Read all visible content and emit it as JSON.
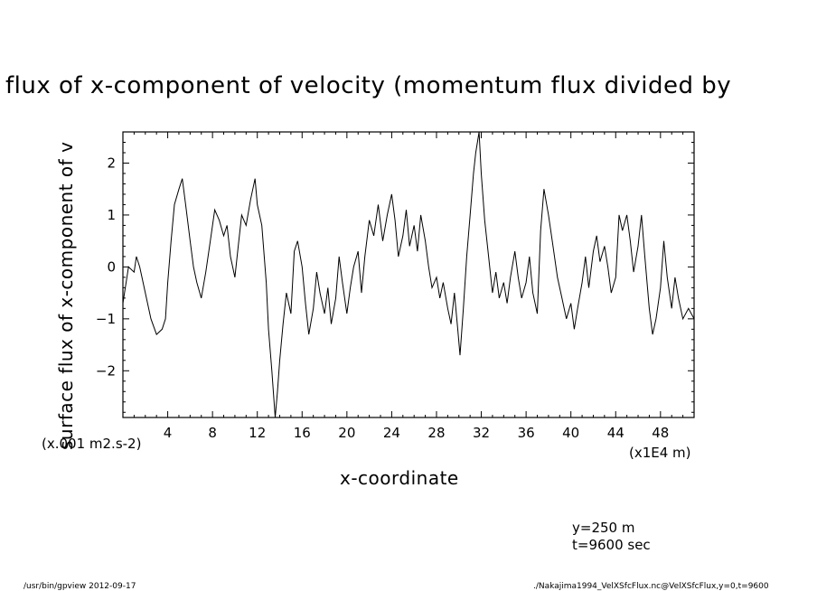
{
  "chart_data": {
    "type": "line",
    "title": "flux of x-component of velocity (momentum flux divided by",
    "xlabel": "x-coordinate",
    "ylabel": "surface flux of x-component of v",
    "x_unit_label": "(x1E4 m)",
    "y_unit_label": "(x.001 m2.s-2)",
    "xlim": [
      0,
      51
    ],
    "ylim": [
      -2.9,
      2.6
    ],
    "x_ticks": [
      4,
      8,
      12,
      16,
      20,
      24,
      28,
      32,
      36,
      40,
      44,
      48
    ],
    "x_tick_labels": [
      "4",
      "8",
      "12",
      "16",
      "20",
      "24",
      "28",
      "32",
      "36",
      "40",
      "44",
      "48"
    ],
    "y_ticks": [
      -2,
      -1,
      0,
      1,
      2
    ],
    "y_tick_labels": [
      "−2",
      "−1",
      "0",
      "1",
      "2"
    ],
    "grid": false,
    "series": [
      {
        "x": [
          0,
          0.5,
          1,
          1.2,
          1.5,
          2,
          2.5,
          3,
          3.5,
          3.8,
          4,
          4.3,
          4.6,
          5,
          5.3,
          5.6,
          6,
          6.3,
          6.6,
          7,
          7.4,
          7.8,
          8.2,
          8.6,
          9,
          9.3,
          9.6,
          10,
          10.3,
          10.6,
          11,
          11.4,
          11.8,
          12,
          12.4,
          12.8,
          13,
          13.3,
          13.6,
          13.8,
          14,
          14.3,
          14.6,
          15,
          15.3,
          15.6,
          16,
          16.3,
          16.6,
          17,
          17.3,
          17.6,
          18,
          18.3,
          18.6,
          19,
          19.3,
          19.6,
          20,
          20.3,
          20.6,
          21,
          21.3,
          21.6,
          22,
          22.4,
          22.8,
          23.2,
          23.6,
          24,
          24.3,
          24.6,
          25,
          25.3,
          25.6,
          26,
          26.3,
          26.6,
          27,
          27.3,
          27.6,
          28,
          28.3,
          28.6,
          29,
          29.3,
          29.6,
          29.9,
          30.1,
          30.4,
          30.7,
          31,
          31.3,
          31.5,
          31.8,
          32,
          32.3,
          32.6,
          33,
          33.3,
          33.6,
          34,
          34.3,
          34.6,
          35,
          35.3,
          35.6,
          36,
          36.3,
          36.6,
          37,
          37.3,
          37.6,
          38,
          38.4,
          38.8,
          39.2,
          39.6,
          40,
          40.3,
          40.6,
          41,
          41.3,
          41.6,
          42,
          42.3,
          42.6,
          43,
          43.3,
          43.6,
          44,
          44.3,
          44.6,
          45,
          45.3,
          45.6,
          46,
          46.3,
          46.6,
          47,
          47.3,
          47.6,
          48,
          48.3,
          48.6,
          49,
          49.3,
          49.6,
          50,
          50.5,
          51
        ],
        "y": [
          -0.7,
          0.0,
          -0.1,
          0.2,
          0.0,
          -0.5,
          -1.0,
          -1.3,
          -1.2,
          -1.0,
          -0.3,
          0.5,
          1.2,
          1.5,
          1.7,
          1.2,
          0.5,
          0.0,
          -0.3,
          -0.6,
          -0.1,
          0.5,
          1.1,
          0.9,
          0.6,
          0.8,
          0.2,
          -0.2,
          0.4,
          1.0,
          0.8,
          1.3,
          1.7,
          1.2,
          0.8,
          -0.3,
          -1.2,
          -2.0,
          -2.9,
          -2.4,
          -1.8,
          -1.1,
          -0.5,
          -0.9,
          0.3,
          0.5,
          0.0,
          -0.7,
          -1.3,
          -0.8,
          -0.1,
          -0.5,
          -0.9,
          -0.4,
          -1.1,
          -0.6,
          0.2,
          -0.3,
          -0.9,
          -0.4,
          0.0,
          0.3,
          -0.5,
          0.2,
          0.9,
          0.6,
          1.2,
          0.5,
          1.0,
          1.4,
          0.9,
          0.2,
          0.6,
          1.1,
          0.4,
          0.8,
          0.3,
          1.0,
          0.5,
          0.0,
          -0.4,
          -0.2,
          -0.6,
          -0.3,
          -0.8,
          -1.1,
          -0.5,
          -1.2,
          -1.7,
          -0.8,
          0.2,
          1.0,
          1.8,
          2.2,
          2.6,
          1.8,
          0.9,
          0.3,
          -0.5,
          -0.1,
          -0.6,
          -0.3,
          -0.7,
          -0.2,
          0.3,
          -0.2,
          -0.6,
          -0.3,
          0.2,
          -0.5,
          -0.9,
          0.7,
          1.5,
          1.0,
          0.4,
          -0.2,
          -0.6,
          -1.0,
          -0.7,
          -1.2,
          -0.8,
          -0.3,
          0.2,
          -0.4,
          0.3,
          0.6,
          0.1,
          0.4,
          0.0,
          -0.5,
          -0.2,
          1.0,
          0.7,
          1.0,
          0.5,
          -0.1,
          0.4,
          1.0,
          0.2,
          -0.8,
          -1.3,
          -1.0,
          -0.4,
          0.5,
          -0.2,
          -0.8,
          -0.2,
          -0.6,
          -1.0,
          -0.8,
          -1.0
        ]
      }
    ]
  },
  "annotations": {
    "y_value": "y=250  m",
    "t_value": "t=9600  sec"
  },
  "footer": {
    "left": "/usr/bin/gpview   2012-09-17",
    "right": "./Nakajima1994_VelXSfcFlux.nc@VelXSfcFlux,y=0,t=9600"
  }
}
